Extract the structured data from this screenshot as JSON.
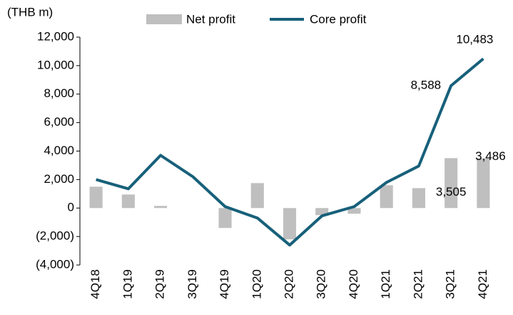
{
  "chart_data": {
    "type": "bar_line",
    "y_label": "(THB m)",
    "categories": [
      "4Q18",
      "1Q19",
      "2Q19",
      "3Q19",
      "4Q19",
      "1Q20",
      "2Q20",
      "3Q20",
      "4Q20",
      "1Q21",
      "2Q21",
      "3Q21",
      "4Q21"
    ],
    "series": [
      {
        "name": "Net profit",
        "type": "bar",
        "color": "#bfbfbf",
        "values": [
          1500,
          950,
          150,
          0,
          -1400,
          1750,
          -2200,
          -500,
          -400,
          1600,
          1400,
          3505,
          3486
        ],
        "value_labels": [
          null,
          null,
          null,
          null,
          null,
          null,
          null,
          null,
          null,
          null,
          null,
          "3,505",
          "3,486"
        ]
      },
      {
        "name": "Core profit",
        "type": "line",
        "color": "#17607a",
        "values": [
          2000,
          1350,
          3700,
          2200,
          100,
          -700,
          -2600,
          -550,
          100,
          1800,
          2950,
          8588,
          10483
        ],
        "value_labels": [
          null,
          null,
          null,
          null,
          null,
          null,
          null,
          null,
          null,
          null,
          null,
          "8,588",
          "10,483"
        ]
      }
    ],
    "ylim": [
      -4000,
      12000
    ],
    "yticks": [
      {
        "value": -4000,
        "label": "(4,000)"
      },
      {
        "value": -2000,
        "label": "(2,000)"
      },
      0,
      {
        "value": 2000,
        "label": "2,000"
      },
      {
        "value": 4000,
        "label": "4,000"
      },
      {
        "value": 6000,
        "label": "6,000"
      },
      {
        "value": 8000,
        "label": "8,000"
      },
      {
        "value": 10000,
        "label": "10,000"
      },
      {
        "value": 12000,
        "label": "12,000"
      }
    ],
    "legend": "top"
  }
}
